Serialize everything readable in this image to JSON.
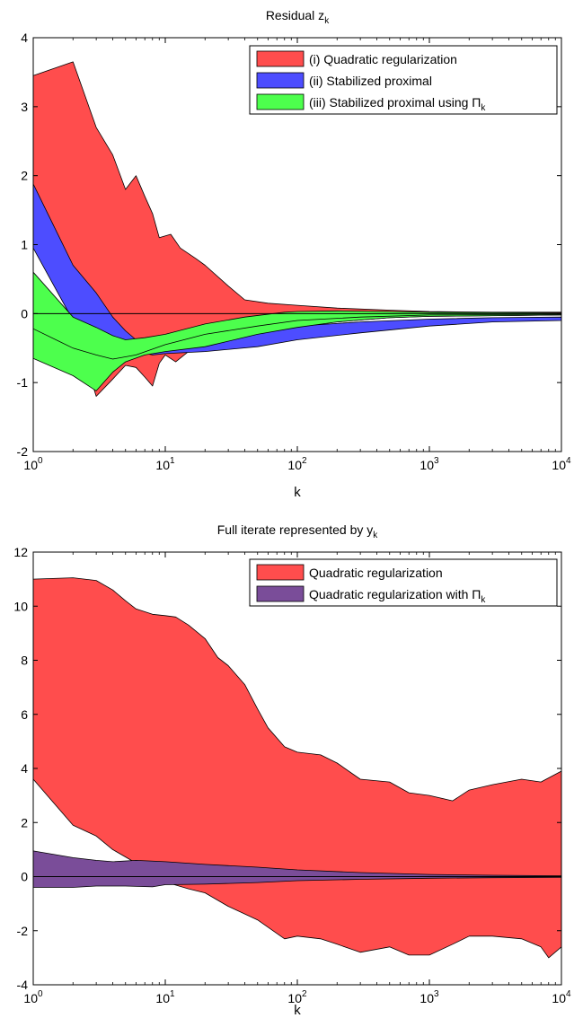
{
  "chart_data": [
    {
      "type": "area",
      "title": "Residual z",
      "title_sub": "k",
      "xlabel": "k",
      "ylabel": "",
      "xscale": "log",
      "xlim": [
        1,
        10000
      ],
      "ylim": [
        -2,
        4
      ],
      "xticks": [
        1,
        10,
        100,
        1000,
        10000
      ],
      "xtick_labels": [
        {
          "base": "10",
          "exp": "0"
        },
        {
          "base": "10",
          "exp": "1"
        },
        {
          "base": "10",
          "exp": "2"
        },
        {
          "base": "10",
          "exp": "3"
        },
        {
          "base": "10",
          "exp": "4"
        }
      ],
      "yticks": [
        "-2",
        "-1",
        "0",
        "1",
        "2",
        "3",
        "4"
      ],
      "grid": false,
      "legend_position": "top-right",
      "series": [
        {
          "name": "(i) Quadratic regularization",
          "color": "#ff4d4d",
          "upper": [
            [
              1,
              3.45
            ],
            [
              2,
              3.65
            ],
            [
              3,
              2.7
            ],
            [
              4,
              2.3
            ],
            [
              5,
              1.8
            ],
            [
              6,
              2.0
            ],
            [
              7,
              1.7
            ],
            [
              8,
              1.45
            ],
            [
              9,
              1.1
            ],
            [
              11,
              1.15
            ],
            [
              13,
              0.95
            ],
            [
              17,
              0.8
            ],
            [
              20,
              0.7
            ],
            [
              30,
              0.4
            ],
            [
              40,
              0.2
            ],
            [
              60,
              0.15
            ],
            [
              100,
              0.12
            ],
            [
              200,
              0.08
            ],
            [
              500,
              0.05
            ],
            [
              1000,
              0.03
            ],
            [
              3000,
              0.02
            ],
            [
              10000,
              0.02
            ]
          ],
          "lower": [
            [
              1,
              1.0
            ],
            [
              2,
              -0.1
            ],
            [
              3,
              -1.2
            ],
            [
              4,
              -0.95
            ],
            [
              5,
              -0.75
            ],
            [
              6,
              -0.78
            ],
            [
              7,
              -0.92
            ],
            [
              8,
              -1.05
            ],
            [
              9,
              -0.72
            ],
            [
              10,
              -0.6
            ],
            [
              12,
              -0.7
            ],
            [
              15,
              -0.55
            ],
            [
              20,
              -0.5
            ],
            [
              30,
              -0.45
            ],
            [
              50,
              -0.3
            ],
            [
              100,
              -0.18
            ],
            [
              200,
              -0.12
            ],
            [
              500,
              -0.06
            ],
            [
              1000,
              -0.04
            ],
            [
              3000,
              -0.03
            ],
            [
              10000,
              -0.02
            ]
          ]
        },
        {
          "name": "(ii) Stabilized proximal",
          "color": "#4d4dff",
          "upper": [
            [
              1,
              1.88
            ],
            [
              2,
              0.7
            ],
            [
              3,
              0.3
            ],
            [
              4,
              -0.05
            ],
            [
              5,
              -0.25
            ],
            [
              6,
              -0.38
            ],
            [
              7,
              -0.42
            ],
            [
              10,
              -0.4
            ],
            [
              20,
              -0.35
            ],
            [
              50,
              -0.25
            ],
            [
              100,
              -0.18
            ],
            [
              300,
              -0.12
            ],
            [
              1000,
              -0.08
            ],
            [
              3000,
              -0.06
            ],
            [
              10000,
              -0.05
            ]
          ],
          "lower": [
            [
              1,
              0.95
            ],
            [
              2,
              -0.1
            ],
            [
              3,
              -0.3
            ],
            [
              4,
              -0.45
            ],
            [
              6,
              -0.55
            ],
            [
              8,
              -0.6
            ],
            [
              10,
              -0.58
            ],
            [
              20,
              -0.55
            ],
            [
              50,
              -0.48
            ],
            [
              100,
              -0.38
            ],
            [
              300,
              -0.28
            ],
            [
              1000,
              -0.18
            ],
            [
              3000,
              -0.12
            ],
            [
              10000,
              -0.1
            ]
          ]
        },
        {
          "name": "(iii) Stabilized proximal using Π",
          "name_sub": "k",
          "color": "#4dff4d",
          "upper": [
            [
              1,
              0.6
            ],
            [
              2,
              -0.05
            ],
            [
              3,
              -0.2
            ],
            [
              4,
              -0.32
            ],
            [
              5,
              -0.38
            ],
            [
              7,
              -0.35
            ],
            [
              10,
              -0.3
            ],
            [
              20,
              -0.15
            ],
            [
              40,
              -0.05
            ],
            [
              80,
              0.02
            ],
            [
              100,
              0.03
            ],
            [
              200,
              0.04
            ],
            [
              500,
              0.03
            ],
            [
              1000,
              0.02
            ],
            [
              10000,
              0.01
            ]
          ],
          "lower": [
            [
              1,
              -0.65
            ],
            [
              2,
              -0.9
            ],
            [
              3,
              -1.12
            ],
            [
              4,
              -0.85
            ],
            [
              5,
              -0.7
            ],
            [
              7,
              -0.6
            ],
            [
              10,
              -0.55
            ],
            [
              20,
              -0.48
            ],
            [
              50,
              -0.3
            ],
            [
              100,
              -0.2
            ],
            [
              200,
              -0.12
            ],
            [
              500,
              -0.06
            ],
            [
              1000,
              -0.04
            ],
            [
              10000,
              -0.02
            ]
          ],
          "middle": [
            [
              1,
              -0.22
            ],
            [
              2,
              -0.5
            ],
            [
              3,
              -0.6
            ],
            [
              4,
              -0.66
            ],
            [
              6,
              -0.6
            ],
            [
              10,
              -0.45
            ],
            [
              20,
              -0.3
            ],
            [
              50,
              -0.18
            ],
            [
              100,
              -0.1
            ],
            [
              300,
              -0.05
            ],
            [
              1000,
              -0.02
            ],
            [
              10000,
              -0.01
            ]
          ]
        }
      ]
    },
    {
      "type": "area",
      "title": "Full iterate represented by y",
      "title_sub": "k",
      "xlabel": "k",
      "ylabel": "",
      "xscale": "log",
      "xlim": [
        1,
        10000
      ],
      "ylim": [
        -4,
        12
      ],
      "xticks": [
        1,
        10,
        100,
        1000,
        10000
      ],
      "xtick_labels": [
        {
          "base": "10",
          "exp": "0"
        },
        {
          "base": "10",
          "exp": "1"
        },
        {
          "base": "10",
          "exp": "2"
        },
        {
          "base": "10",
          "exp": "3"
        },
        {
          "base": "10",
          "exp": "4"
        }
      ],
      "yticks": [
        "-4",
        "-2",
        "0",
        "2",
        "4",
        "6",
        "8",
        "10",
        "12"
      ],
      "grid": false,
      "legend_position": "top-right",
      "series": [
        {
          "name": "Quadratic regularization",
          "color": "#ff4d4d",
          "upper": [
            [
              1,
              11.0
            ],
            [
              2,
              11.05
            ],
            [
              3,
              10.95
            ],
            [
              4,
              10.6
            ],
            [
              5,
              10.2
            ],
            [
              6,
              9.9
            ],
            [
              8,
              9.7
            ],
            [
              10,
              9.65
            ],
            [
              12,
              9.6
            ],
            [
              15,
              9.3
            ],
            [
              20,
              8.8
            ],
            [
              25,
              8.1
            ],
            [
              30,
              7.8
            ],
            [
              40,
              7.1
            ],
            [
              50,
              6.2
            ],
            [
              60,
              5.5
            ],
            [
              80,
              4.8
            ],
            [
              100,
              4.6
            ],
            [
              150,
              4.5
            ],
            [
              200,
              4.2
            ],
            [
              300,
              3.6
            ],
            [
              500,
              3.5
            ],
            [
              700,
              3.1
            ],
            [
              1000,
              3.0
            ],
            [
              1500,
              2.8
            ],
            [
              2000,
              3.2
            ],
            [
              3000,
              3.4
            ],
            [
              5000,
              3.6
            ],
            [
              7000,
              3.5
            ],
            [
              10000,
              3.9
            ]
          ],
          "lower": [
            [
              1,
              3.6
            ],
            [
              2,
              1.9
            ],
            [
              3,
              1.5
            ],
            [
              4,
              1.0
            ],
            [
              6,
              0.5
            ],
            [
              8,
              0.1
            ],
            [
              10,
              -0.2
            ],
            [
              15,
              -0.45
            ],
            [
              20,
              -0.6
            ],
            [
              30,
              -1.1
            ],
            [
              50,
              -1.6
            ],
            [
              80,
              -2.3
            ],
            [
              100,
              -2.2
            ],
            [
              150,
              -2.3
            ],
            [
              200,
              -2.5
            ],
            [
              300,
              -2.8
            ],
            [
              500,
              -2.6
            ],
            [
              700,
              -2.9
            ],
            [
              1000,
              -2.9
            ],
            [
              1500,
              -2.5
            ],
            [
              2000,
              -2.2
            ],
            [
              3000,
              -2.2
            ],
            [
              5000,
              -2.3
            ],
            [
              7000,
              -2.6
            ],
            [
              8000,
              -3.0
            ],
            [
              10000,
              -2.6
            ]
          ]
        },
        {
          "name": "Quadratic regularization with Π",
          "name_sub": "k",
          "color": "#7a4d99",
          "upper": [
            [
              1,
              0.95
            ],
            [
              2,
              0.7
            ],
            [
              3,
              0.6
            ],
            [
              4,
              0.55
            ],
            [
              6,
              0.6
            ],
            [
              10,
              0.55
            ],
            [
              20,
              0.45
            ],
            [
              50,
              0.35
            ],
            [
              100,
              0.25
            ],
            [
              300,
              0.15
            ],
            [
              1000,
              0.08
            ],
            [
              3000,
              0.05
            ],
            [
              10000,
              0.03
            ]
          ],
          "lower": [
            [
              1,
              -0.4
            ],
            [
              2,
              -0.4
            ],
            [
              3,
              -0.35
            ],
            [
              5,
              -0.35
            ],
            [
              8,
              -0.38
            ],
            [
              10,
              -0.3
            ],
            [
              20,
              -0.28
            ],
            [
              50,
              -0.22
            ],
            [
              100,
              -0.15
            ],
            [
              300,
              -0.1
            ],
            [
              1000,
              -0.06
            ],
            [
              3000,
              -0.04
            ],
            [
              10000,
              -0.03
            ]
          ]
        }
      ]
    }
  ]
}
